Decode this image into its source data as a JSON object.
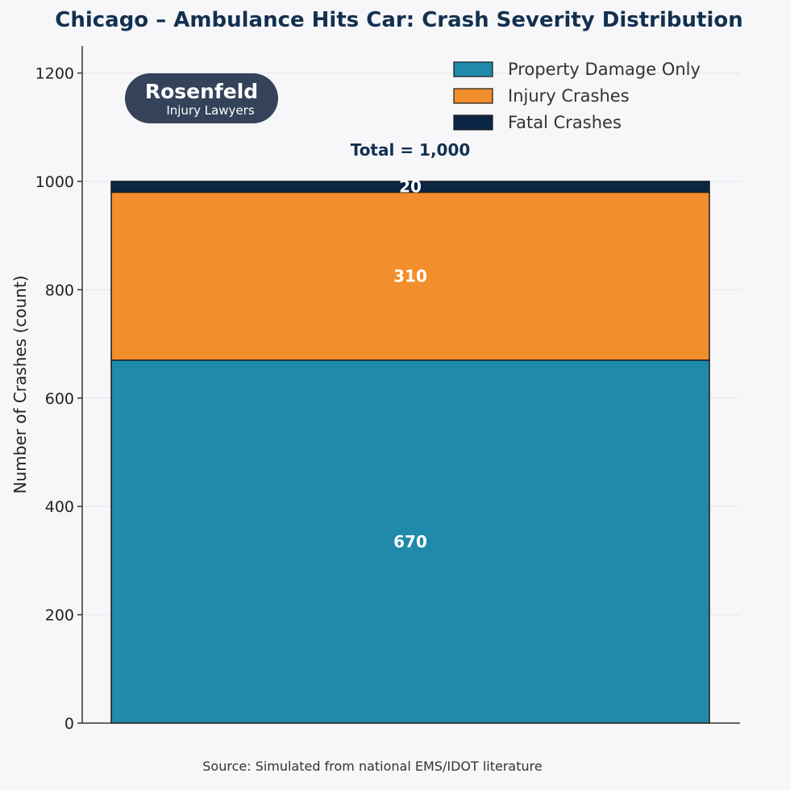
{
  "chart_data": {
    "type": "bar",
    "stacked": true,
    "title": "Chicago – Ambulance Hits Car: Crash Severity Distribution",
    "xlabel": "",
    "ylabel": "Number of Crashes (count)",
    "ylim": [
      0,
      1250
    ],
    "yticks": [
      0,
      200,
      400,
      600,
      800,
      1000,
      1200
    ],
    "grid": true,
    "legend_position": "top-right",
    "categories": [
      ""
    ],
    "series": [
      {
        "name": "Property Damage Only",
        "values": [
          670
        ],
        "color": "#1f8aab",
        "label": "670"
      },
      {
        "name": "Injury Crashes",
        "values": [
          310
        ],
        "color": "#f28e2b",
        "label": "310"
      },
      {
        "name": "Fatal Crashes",
        "values": [
          20
        ],
        "color": "#0b2545",
        "label": "20"
      }
    ],
    "annotation": "Total = 1,000",
    "source": "Source: Simulated from national EMS/IDOT literature"
  },
  "logo": {
    "line1": "Rosenfeld",
    "line2": "Injury Lawyers",
    "color": "#34425a"
  },
  "colors": {
    "title": "#13304f",
    "grid": "#e3e5ea",
    "axis": "#333333"
  }
}
